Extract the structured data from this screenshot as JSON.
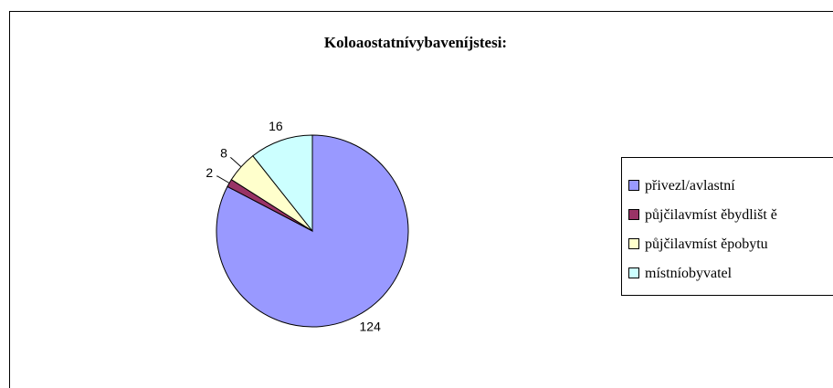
{
  "chart_data": {
    "type": "pie",
    "title": "Koloaostatnívybaveníjstesi:",
    "categories": [
      "přivezl/avlastní",
      "půjčilavmíst ěbydlišt ě",
      "půjčilavmíst ěpobytu",
      "místníobyvatel"
    ],
    "values": [
      124,
      2,
      8,
      16
    ],
    "colors": [
      "#9999ff",
      "#993366",
      "#ffffcc",
      "#ccffff"
    ],
    "legend": "right"
  }
}
